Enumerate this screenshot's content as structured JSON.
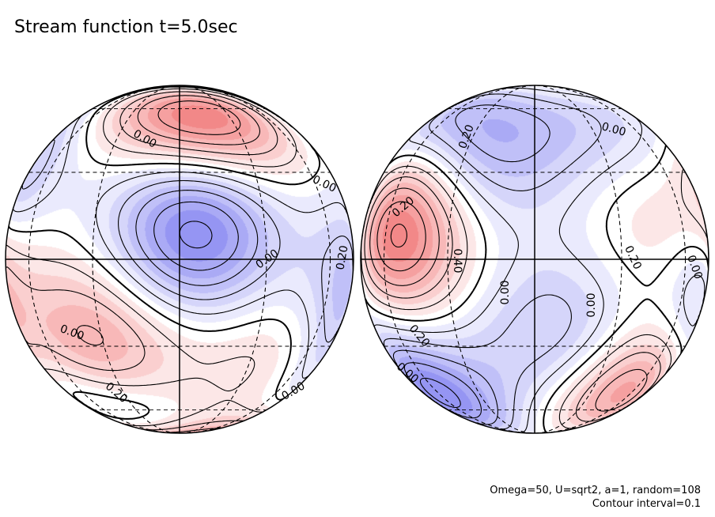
{
  "title": "Stream function t=5.0sec",
  "footer": {
    "params": "Omega=50, U=sqrt2, a=1, random=108",
    "contour": "Contour interval=0.1"
  },
  "colors": {
    "positive": "#f07070",
    "negative": "#8080f0",
    "contour": "#000000",
    "background": "#ffffff"
  },
  "chart_data": {
    "type": "heatmap",
    "projection": "orthographic hemispheres (two globes)",
    "contour_interval": 0.1,
    "negative_contours": "dashed",
    "positive_contours": "solid",
    "grid": true,
    "hemispheres": [
      {
        "name": "left",
        "contour_labels": [
          {
            "text": "0.00",
            "angle": 30
          },
          {
            "text": "0.00",
            "angle": 25
          },
          {
            "text": "0.20",
            "angle": -80
          },
          {
            "text": "0.00",
            "angle": -35
          },
          {
            "text": "0.00",
            "angle": 20
          },
          {
            "text": "0.20",
            "angle": 40
          },
          {
            "text": "0.00",
            "angle": -30
          }
        ],
        "extrema": [
          {
            "sign": "positive",
            "lon": 15,
            "lat": 55,
            "amp": 0.6
          },
          {
            "sign": "negative",
            "lon": 5,
            "lat": 10,
            "amp": 0.6
          },
          {
            "sign": "positive",
            "lon": -30,
            "lat": -30,
            "amp": 0.4
          },
          {
            "sign": "negative",
            "lon": -35,
            "lat": -65,
            "amp": 0.45
          },
          {
            "sign": "positive",
            "lon": 10,
            "lat": -85,
            "amp": 0.6
          },
          {
            "sign": "negative",
            "lon": 20,
            "lat": 85,
            "amp": 0.5
          },
          {
            "sign": "positive",
            "lon": -30,
            "lat": 75,
            "amp": 0.3
          },
          {
            "sign": "negative",
            "lon": 70,
            "lat": -10,
            "amp": 0.3
          },
          {
            "sign": "negative",
            "lon": -80,
            "lat": 30,
            "amp": 0.3
          },
          {
            "sign": "positive",
            "lon": -85,
            "lat": -10,
            "amp": 0.3
          },
          {
            "sign": "positive",
            "lon": 40,
            "lat": -35,
            "amp": 0.25
          },
          {
            "sign": "negative",
            "lon": 60,
            "lat": -50,
            "amp": 0.2
          }
        ]
      },
      {
        "name": "right",
        "contour_labels": [
          {
            "text": "0.20",
            "angle": -70
          },
          {
            "text": "0.00",
            "angle": 15
          },
          {
            "text": "0.20",
            "angle": -40
          },
          {
            "text": "0.40",
            "angle": 90
          },
          {
            "text": "0.00",
            "angle": -90
          },
          {
            "text": "0.00",
            "angle": -90
          },
          {
            "text": "0.20",
            "angle": 65
          },
          {
            "text": "0.00",
            "angle": 70
          },
          {
            "text": "0.20",
            "angle": 50
          },
          {
            "text": "0.00",
            "angle": 40
          }
        ],
        "extrema": [
          {
            "sign": "positive",
            "lon": -50,
            "lat": 10,
            "amp": 0.6
          },
          {
            "sign": "negative",
            "lon": -60,
            "lat": -50,
            "amp": 0.55
          },
          {
            "sign": "positive",
            "lon": 50,
            "lat": -45,
            "amp": 0.5
          },
          {
            "sign": "negative",
            "lon": 70,
            "lat": -15,
            "amp": 0.35
          },
          {
            "sign": "negative",
            "lon": -20,
            "lat": 35,
            "amp": 0.3
          },
          {
            "sign": "negative",
            "lon": 10,
            "lat": -25,
            "amp": 0.3
          },
          {
            "sign": "negative",
            "lon": -55,
            "lat": 60,
            "amp": 0.3
          },
          {
            "sign": "positive",
            "lon": 85,
            "lat": 15,
            "amp": 0.25
          },
          {
            "sign": "positive",
            "lon": 40,
            "lat": 10,
            "amp": 0.15
          },
          {
            "sign": "negative",
            "lon": 30,
            "lat": 50,
            "amp": 0.2
          },
          {
            "sign": "positive",
            "lon": 20,
            "lat": 80,
            "amp": 0.2
          },
          {
            "sign": "negative",
            "lon": 90,
            "lat": 60,
            "amp": 0.15
          }
        ]
      }
    ]
  }
}
